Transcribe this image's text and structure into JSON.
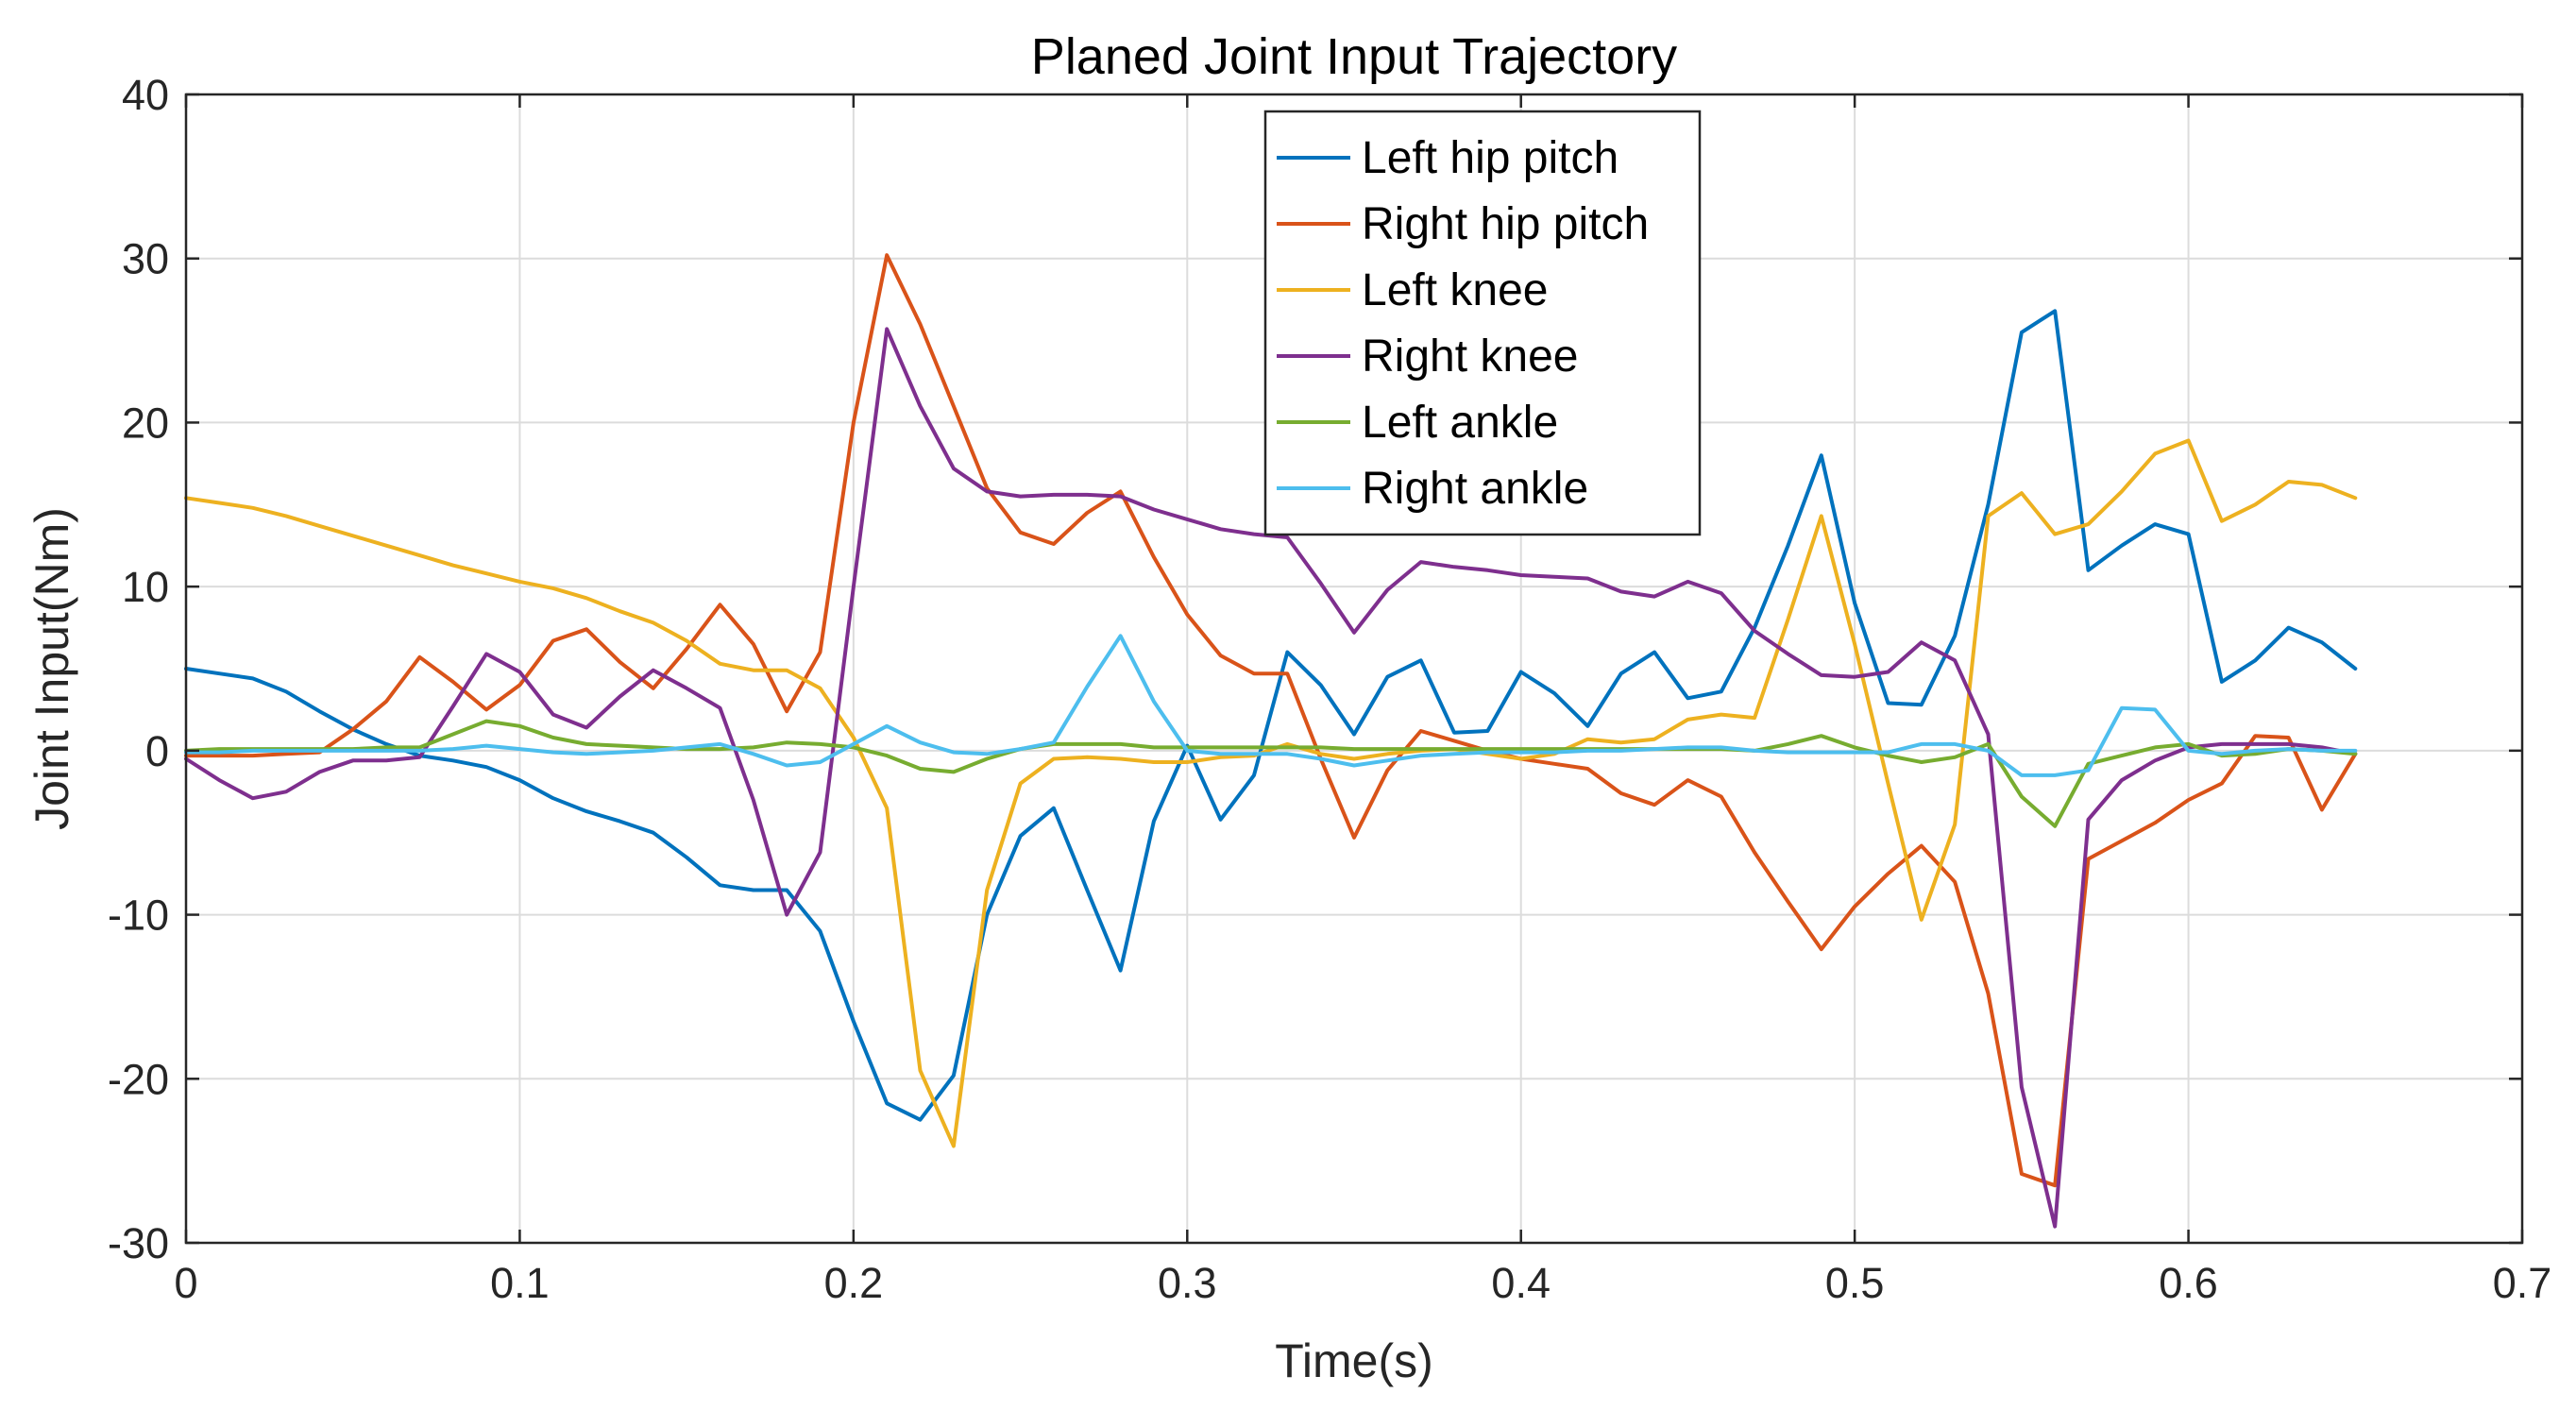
{
  "chart_data": {
    "type": "line",
    "title": "Planed Joint Input Trajectory",
    "xlabel": "Time(s)",
    "ylabel": "Joint Input(Nm)",
    "xlim": [
      0,
      0.7
    ],
    "ylim": [
      -30,
      40
    ],
    "xticks": [
      0,
      0.1,
      0.2,
      0.3,
      0.4,
      0.5,
      0.6,
      0.7
    ],
    "xtick_labels": [
      "0",
      "0.1",
      "0.2",
      "0.3",
      "0.4",
      "0.5",
      "0.6",
      "0.7"
    ],
    "yticks": [
      -30,
      -20,
      -10,
      0,
      10,
      20,
      30,
      40
    ],
    "ytick_labels": [
      "-30",
      "-20",
      "-10",
      "0",
      "10",
      "20",
      "30",
      "40"
    ],
    "grid": true,
    "legend_position": "top-center",
    "x": [
      0,
      0.01,
      0.02,
      0.03,
      0.04,
      0.05,
      0.06,
      0.07,
      0.08,
      0.09,
      0.1,
      0.11,
      0.12,
      0.13,
      0.14,
      0.15,
      0.16,
      0.17,
      0.18,
      0.19,
      0.2,
      0.21,
      0.22,
      0.23,
      0.24,
      0.25,
      0.26,
      0.27,
      0.28,
      0.29,
      0.3,
      0.31,
      0.32,
      0.33,
      0.34,
      0.35,
      0.36,
      0.37,
      0.38,
      0.39,
      0.4,
      0.41,
      0.42,
      0.43,
      0.44,
      0.45,
      0.46,
      0.47,
      0.48,
      0.49,
      0.5,
      0.51,
      0.52,
      0.53,
      0.54,
      0.55,
      0.56,
      0.57,
      0.58,
      0.59,
      0.6,
      0.61,
      0.62,
      0.63,
      0.64,
      0.65
    ],
    "series": [
      {
        "name": "Left hip pitch",
        "color": "#0072BD",
        "values": [
          5.0,
          4.7,
          4.4,
          3.6,
          2.4,
          1.3,
          0.4,
          -0.3,
          -0.6,
          -1.0,
          -1.8,
          -2.9,
          -3.7,
          -4.3,
          -5.0,
          -6.5,
          -8.2,
          -8.5,
          -8.5,
          -11.0,
          -16.5,
          -21.5,
          -22.5,
          -19.8,
          -10.0,
          -5.2,
          -3.5,
          -8.5,
          -13.4,
          -4.3,
          0.3,
          -4.2,
          -1.5,
          6.0,
          4.0,
          1.0,
          4.5,
          5.5,
          1.1,
          1.2,
          4.8,
          3.5,
          1.5,
          4.7,
          6.0,
          3.2,
          3.6,
          7.5,
          12.5,
          18.0,
          9.0,
          2.9,
          2.8,
          7.0,
          15.0,
          25.5,
          26.8,
          11.0,
          12.5,
          13.8,
          13.2,
          4.2,
          5.5,
          7.5,
          6.6,
          5.0
        ]
      },
      {
        "name": "Right hip pitch",
        "color": "#D95319",
        "values": [
          -0.3,
          -0.3,
          -0.3,
          -0.2,
          -0.1,
          1.3,
          3.0,
          5.7,
          4.2,
          2.5,
          4.0,
          6.7,
          7.4,
          5.4,
          3.8,
          6.2,
          8.9,
          6.5,
          2.4,
          6.0,
          20.0,
          30.2,
          26.0,
          21.0,
          16.0,
          13.3,
          12.6,
          14.5,
          15.8,
          11.8,
          8.3,
          5.8,
          4.7,
          4.7,
          -0.5,
          -5.3,
          -1.2,
          1.2,
          0.6,
          0.0,
          -0.5,
          -0.8,
          -1.1,
          -2.6,
          -3.3,
          -1.8,
          -2.8,
          -6.2,
          -9.2,
          -12.1,
          -9.5,
          -7.5,
          -5.8,
          -8.0,
          -14.8,
          -25.8,
          -26.5,
          -6.6,
          -5.5,
          -4.4,
          -3.0,
          -2.0,
          0.9,
          0.8,
          -3.6,
          -0.2
        ]
      },
      {
        "name": "Left knee",
        "color": "#EDB120",
        "values": [
          15.4,
          15.1,
          14.8,
          14.3,
          13.7,
          13.1,
          12.5,
          11.9,
          11.3,
          10.8,
          10.3,
          9.9,
          9.3,
          8.5,
          7.8,
          6.7,
          5.3,
          4.9,
          4.9,
          3.8,
          0.8,
          -3.5,
          -19.5,
          -24.1,
          -8.5,
          -2.0,
          -0.5,
          -0.4,
          -0.5,
          -0.7,
          -0.7,
          -0.4,
          -0.3,
          0.4,
          -0.2,
          -0.5,
          -0.2,
          0.0,
          0.1,
          -0.2,
          -0.5,
          -0.2,
          0.7,
          0.5,
          0.7,
          1.9,
          2.2,
          2.0,
          8.0,
          14.3,
          6.5,
          -2.0,
          -10.3,
          -4.5,
          14.3,
          15.7,
          13.2,
          13.8,
          15.8,
          18.1,
          18.9,
          14.0,
          15.0,
          16.4,
          16.2,
          15.4
        ]
      },
      {
        "name": "Right knee",
        "color": "#7E2F8E",
        "values": [
          -0.5,
          -1.8,
          -2.9,
          -2.5,
          -1.3,
          -0.6,
          -0.6,
          -0.4,
          2.7,
          5.9,
          4.8,
          2.2,
          1.4,
          3.3,
          4.9,
          3.8,
          2.6,
          -3.0,
          -10.0,
          -6.2,
          10.0,
          25.7,
          21.0,
          17.2,
          15.8,
          15.5,
          15.6,
          15.6,
          15.5,
          14.7,
          14.1,
          13.5,
          13.2,
          13.0,
          10.2,
          7.2,
          9.8,
          11.5,
          11.2,
          11.0,
          10.7,
          10.6,
          10.5,
          9.7,
          9.4,
          10.3,
          9.6,
          7.3,
          5.9,
          4.6,
          4.5,
          4.8,
          6.6,
          5.5,
          1.0,
          -20.5,
          -29.0,
          -4.2,
          -1.8,
          -0.6,
          0.2,
          0.4,
          0.4,
          0.4,
          0.2,
          -0.2
        ]
      },
      {
        "name": "Left ankle",
        "color": "#77AC30",
        "values": [
          0.0,
          0.1,
          0.1,
          0.1,
          0.1,
          0.1,
          0.2,
          0.2,
          1.0,
          1.8,
          1.5,
          0.8,
          0.4,
          0.3,
          0.2,
          0.1,
          0.1,
          0.2,
          0.5,
          0.4,
          0.2,
          -0.3,
          -1.1,
          -1.3,
          -0.5,
          0.1,
          0.4,
          0.4,
          0.4,
          0.2,
          0.2,
          0.2,
          0.2,
          0.2,
          0.2,
          0.1,
          0.1,
          0.1,
          0.1,
          0.1,
          0.1,
          0.1,
          0.1,
          0.1,
          0.1,
          0.1,
          0.1,
          0.0,
          0.4,
          0.9,
          0.2,
          -0.3,
          -0.7,
          -0.4,
          0.4,
          -2.8,
          -4.6,
          -0.8,
          -0.3,
          0.2,
          0.4,
          -0.3,
          -0.2,
          0.1,
          0.0,
          -0.2
        ]
      },
      {
        "name": "Right ankle",
        "color": "#4DBEEE",
        "values": [
          -0.1,
          -0.1,
          0.0,
          0.0,
          0.0,
          0.0,
          0.0,
          0.0,
          0.1,
          0.3,
          0.1,
          -0.1,
          -0.2,
          -0.1,
          0.0,
          0.2,
          0.4,
          -0.2,
          -0.9,
          -0.7,
          0.4,
          1.5,
          0.5,
          -0.1,
          -0.2,
          0.1,
          0.5,
          3.9,
          7.0,
          3.0,
          0.0,
          -0.2,
          -0.2,
          -0.2,
          -0.5,
          -0.9,
          -0.6,
          -0.3,
          -0.2,
          -0.1,
          -0.1,
          -0.1,
          0.0,
          0.0,
          0.1,
          0.2,
          0.2,
          0.0,
          -0.1,
          -0.1,
          -0.1,
          -0.1,
          0.4,
          0.4,
          0.0,
          -1.5,
          -1.5,
          -1.2,
          2.6,
          2.5,
          0.0,
          -0.2,
          0.0,
          0.1,
          0.0,
          0.0
        ]
      }
    ]
  }
}
